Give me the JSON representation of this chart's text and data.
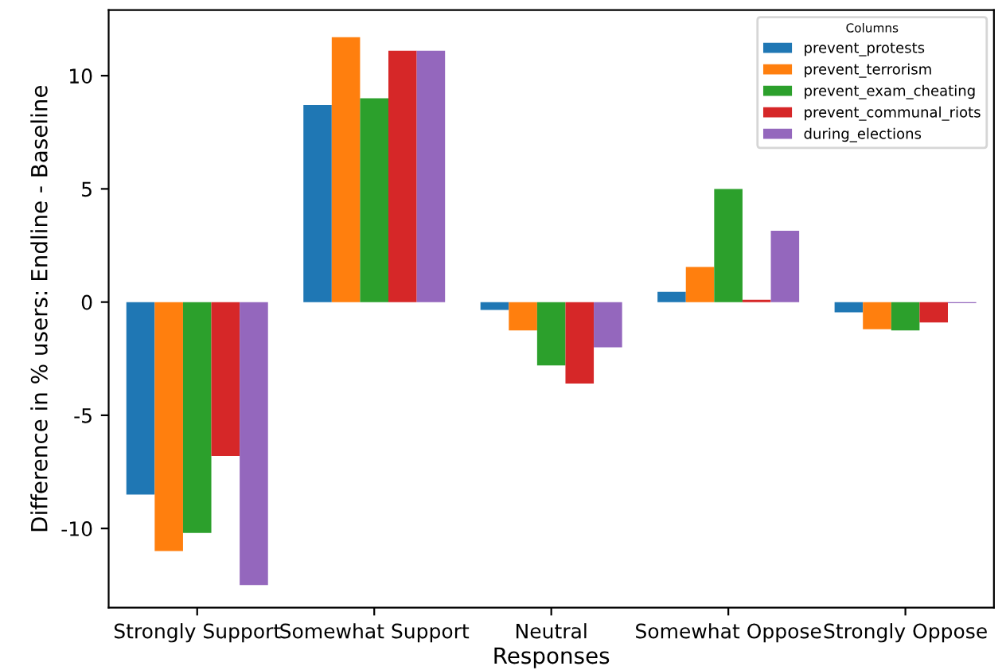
{
  "chart_data": {
    "type": "bar",
    "xlabel": "Responses",
    "ylabel": "Difference in % users: Endline - Baseline",
    "categories": [
      "Strongly Support",
      "Somewhat Support",
      "Neutral",
      "Somewhat Oppose",
      "Strongly Oppose"
    ],
    "series": [
      {
        "name": "prevent_protests",
        "color": "#1f77b4",
        "values": [
          -8.5,
          8.7,
          -0.35,
          0.45,
          -0.45
        ]
      },
      {
        "name": "prevent_terrorism",
        "color": "#ff7f0e",
        "values": [
          -11.0,
          11.7,
          -1.25,
          1.55,
          -1.2
        ]
      },
      {
        "name": "prevent_exam_cheating",
        "color": "#2ca02c",
        "values": [
          -10.2,
          9.0,
          -2.8,
          5.0,
          -1.25
        ]
      },
      {
        "name": "prevent_communal_riots",
        "color": "#d62728",
        "values": [
          -6.8,
          11.1,
          -3.6,
          0.1,
          -0.9
        ]
      },
      {
        "name": "during_elections",
        "color": "#9467bd",
        "values": [
          -12.5,
          11.1,
          -2.0,
          3.15,
          -0.05
        ]
      }
    ],
    "ylim": [
      -13.5,
      12.9
    ],
    "yticks": [
      -10,
      -5,
      0,
      5,
      10
    ],
    "legend": "top right",
    "legend_title": "Columns",
    "grid": false
  }
}
